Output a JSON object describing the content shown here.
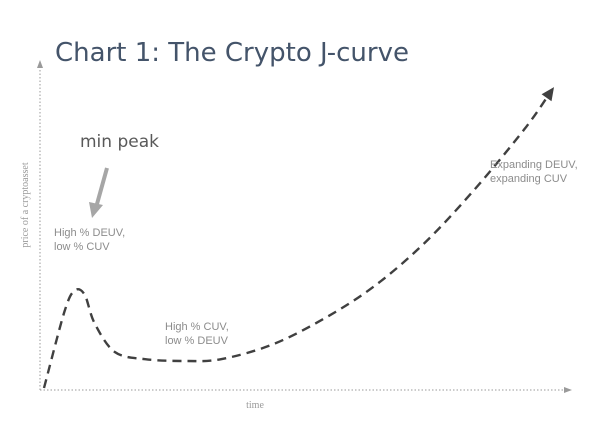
{
  "chart_data": {
    "type": "line",
    "title": "Chart 1: The Crypto J-curve",
    "xlabel": "time",
    "ylabel": "price of a cryptoasset",
    "callout": "min peak",
    "annotations": [
      {
        "lines": [
          "High % DEUV,",
          "low % CUV"
        ]
      },
      {
        "lines": [
          "High % CUV,",
          "low % DEUV"
        ]
      },
      {
        "lines": [
          "Expanding DEUV,",
          "expanding CUV"
        ]
      }
    ],
    "series": [
      {
        "style": "dashed",
        "color": "#404040",
        "x": [
          0,
          4,
          6,
          8,
          10,
          14,
          20,
          28,
          35,
          45,
          55,
          65,
          75,
          85,
          95,
          100
        ],
        "y": [
          0,
          21,
          27,
          26,
          18,
          10,
          8,
          7.5,
          8,
          12,
          19,
          28,
          40,
          55,
          72,
          82
        ]
      }
    ],
    "xlim": [
      0,
      100
    ],
    "ylim": [
      0,
      90
    ],
    "colors": {
      "axis": "#9a9a9a",
      "arrow": "#a6a6a6",
      "title": "#44546a"
    }
  }
}
